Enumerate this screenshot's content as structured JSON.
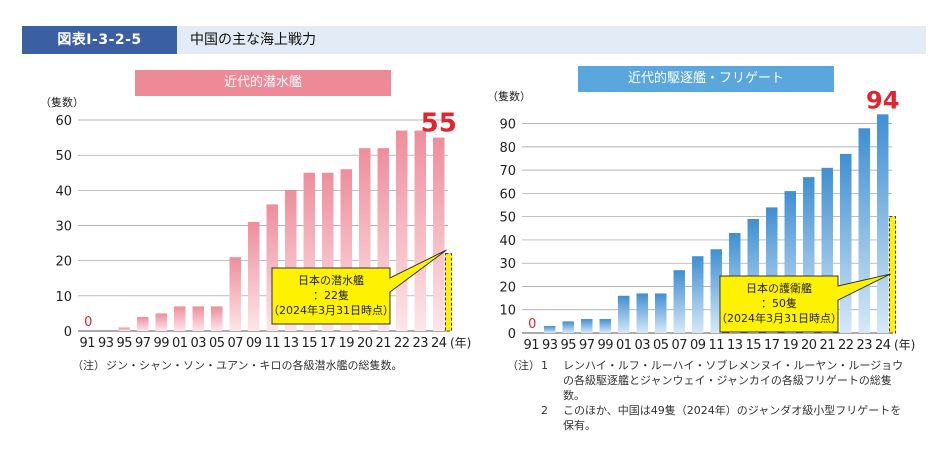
{
  "header": {
    "figure_label": "図表Ⅰ-3-2-5",
    "title": "中国の主な海上戦力"
  },
  "colors": {
    "header_bg": "#e3ebf6",
    "label_bg": "#3b5fa3",
    "sub_title_bg": "#ee8a98",
    "ship_title_bg": "#5aa7de",
    "sub_bar": "#ef8d9b",
    "ship_bar": "#3f8fd2",
    "highlight": "#fff200",
    "latest_value": "#e0262c"
  },
  "chart_data": [
    {
      "type": "bar",
      "title": "近代的潜水艦",
      "ylabel": "（隻数）",
      "xlabel": "(年)",
      "ylim": [
        0,
        60
      ],
      "yticks": [
        0,
        10,
        20,
        30,
        40,
        50,
        60
      ],
      "grid": true,
      "categories": [
        "91",
        "93",
        "95",
        "97",
        "99",
        "01",
        "03",
        "05",
        "07",
        "09",
        "11",
        "13",
        "15",
        "17",
        "19",
        "20",
        "21",
        "22",
        "23",
        "24"
      ],
      "values": [
        0,
        0,
        1,
        4,
        5,
        7,
        7,
        7,
        21,
        31,
        36,
        40,
        45,
        45,
        46,
        52,
        52,
        57,
        57,
        55
      ],
      "highlight": {
        "category": "24",
        "value": 22
      },
      "start_label": "0",
      "end_label": "55",
      "callout": [
        "日本の潜水艦",
        "：22隻",
        "（2024年3月31日時点）"
      ]
    },
    {
      "type": "bar",
      "title": "近代的駆逐艦・フリゲート",
      "ylabel": "（隻数）",
      "xlabel": "(年)",
      "ylim": [
        0,
        95
      ],
      "yticks": [
        0,
        10,
        20,
        30,
        40,
        50,
        60,
        70,
        80,
        90
      ],
      "grid": true,
      "categories": [
        "91",
        "93",
        "95",
        "97",
        "99",
        "01",
        "03",
        "05",
        "07",
        "09",
        "11",
        "13",
        "15",
        "17",
        "19",
        "20",
        "21",
        "22",
        "23",
        "24"
      ],
      "values": [
        0,
        3,
        5,
        6,
        6,
        16,
        17,
        17,
        27,
        33,
        36,
        43,
        49,
        54,
        61,
        67,
        71,
        77,
        88,
        94
      ],
      "highlight": {
        "category": "24",
        "value": 50
      },
      "start_label": "0",
      "end_label": "94",
      "callout": [
        "日本の護衛艦",
        "：50隻",
        "（2024年3月31日時点）"
      ]
    }
  ],
  "notes": {
    "left": {
      "key": "（注）",
      "text": "ジン・シャン・ソン・ユアン・キロの各級潜水艦の総隻数。"
    },
    "right": {
      "key": "（注）",
      "items": [
        {
          "num": "1",
          "text": "レンハイ・ルフ・ルーハイ・ソブレメンヌイ・ルーヤン・ルージョウの各級駆逐艦とジャンウェイ・ジャンカイの各級フリゲートの総隻数。"
        },
        {
          "num": "2",
          "text": "このほか、中国は49隻（2024年）のジャンダオ級小型フリゲートを保有。"
        }
      ]
    }
  }
}
